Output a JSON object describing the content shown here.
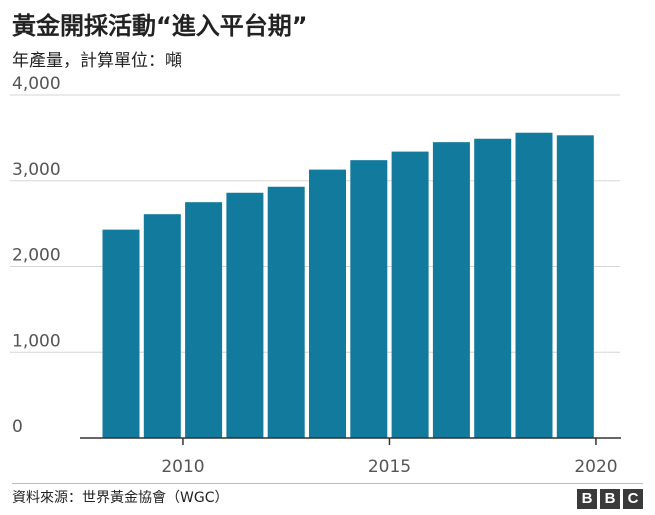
{
  "header": {
    "title": "黃金開採活動“進入平台期”",
    "subtitle": "年產量，計算單位：噸"
  },
  "footer": {
    "source": "資料來源：世界黃金協會（WGC）",
    "logo_letters": [
      "B",
      "B",
      "C"
    ]
  },
  "colors": {
    "bar": "#127a9c",
    "grid": "#d6d6d6",
    "axis": "#333333",
    "text": "#222222",
    "tick_text": "#555555"
  },
  "chart_data": {
    "type": "bar",
    "x": [
      2008,
      2009,
      2010,
      2011,
      2012,
      2013,
      2014,
      2015,
      2016,
      2017,
      2018,
      2019
    ],
    "values": [
      2430,
      2610,
      2750,
      2860,
      2930,
      3130,
      3240,
      3340,
      3450,
      3490,
      3560,
      3530
    ],
    "ylim": [
      0,
      4000
    ],
    "yticks": [
      0,
      1000,
      2000,
      3000,
      4000
    ],
    "ytick_labels": [
      "0",
      "1,000",
      "2,000",
      "3,000",
      "4,000"
    ],
    "xticks": [
      2010,
      2015,
      2020
    ],
    "xtick_labels": [
      "2010",
      "2015",
      "2020"
    ],
    "grid": true
  }
}
